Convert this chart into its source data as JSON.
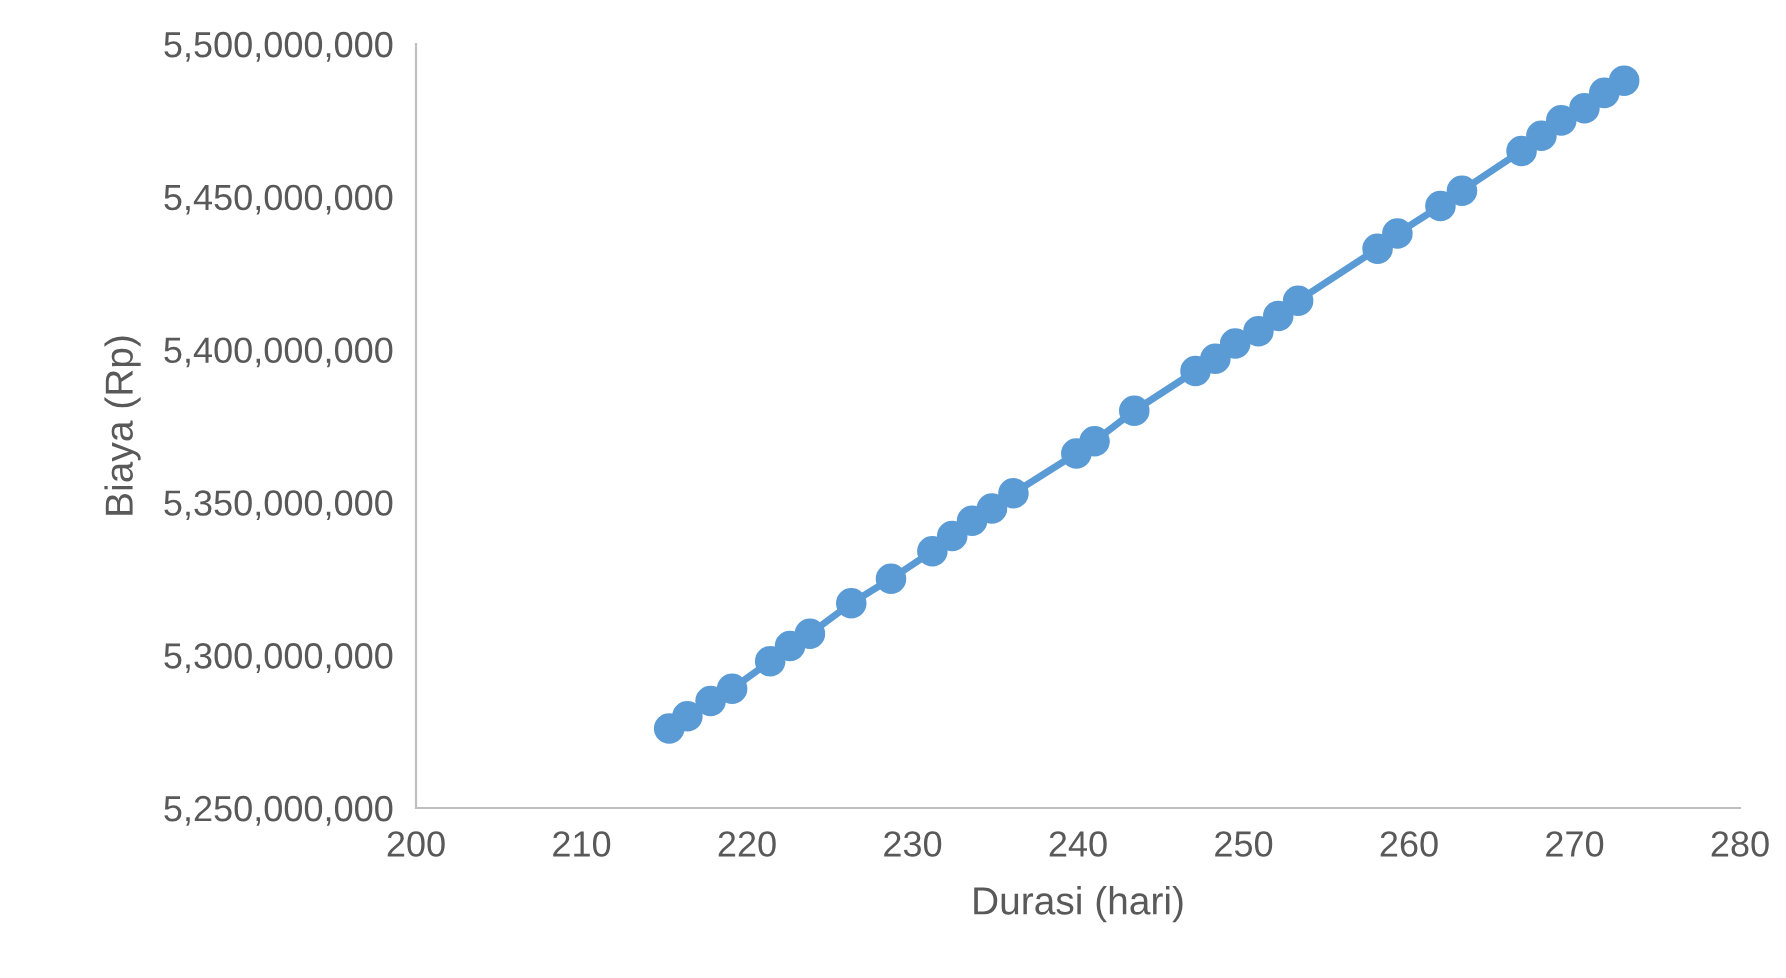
{
  "chart_data": {
    "type": "line",
    "xlabel": "Durasi (hari)",
    "ylabel": "Biaya (Rp)",
    "marker": "circle",
    "line_style": "solid",
    "grid": false,
    "legend": false,
    "xlim": [
      200,
      280
    ],
    "xticks": [
      200,
      210,
      220,
      230,
      240,
      250,
      260,
      270,
      280
    ],
    "ylim": [
      5250000000,
      5500000000
    ],
    "yticks": [
      {
        "value": 5250000000,
        "label": "5,250,000,000"
      },
      {
        "value": 5300000000,
        "label": "5,300,000,000"
      },
      {
        "value": 5350000000,
        "label": "5,350,000,000"
      },
      {
        "value": 5400000000,
        "label": "5,400,000,000"
      },
      {
        "value": 5450000000,
        "label": "5,450,000,000"
      },
      {
        "value": 5500000000,
        "label": "5,500,000,000"
      }
    ],
    "series": [
      {
        "color": "#5b9bd5",
        "x": [
          215.3,
          216.4,
          217.8,
          219.1,
          221.4,
          222.6,
          223.8,
          226.3,
          228.7,
          231.2,
          232.4,
          233.6,
          234.8,
          236.1,
          239.9,
          241.0,
          243.4,
          247.1,
          248.3,
          249.5,
          250.9,
          252.1,
          253.3,
          258.1,
          259.3,
          261.9,
          263.2,
          266.8,
          268.0,
          269.2,
          270.6,
          271.8,
          273.0
        ],
        "values": [
          5276000000,
          5280000000,
          5285000000,
          5289000000,
          5298000000,
          5303000000,
          5307000000,
          5317000000,
          5325000000,
          5334000000,
          5339000000,
          5344000000,
          5348000000,
          5353000000,
          5366000000,
          5370000000,
          5380000000,
          5393000000,
          5397000000,
          5402000000,
          5406000000,
          5411000000,
          5416000000,
          5433000000,
          5438000000,
          5447000000,
          5452000000,
          5465000000,
          5470000000,
          5475000000,
          5479000000,
          5484000000,
          5488000000
        ]
      }
    ]
  }
}
